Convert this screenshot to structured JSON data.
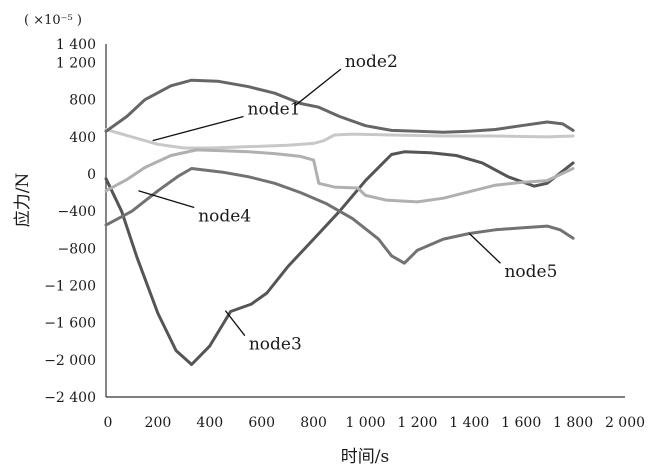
{
  "chart_data": {
    "type": "line",
    "ylabel": "应力/N",
    "xlabel": "时间/s",
    "y_unit": "( ×10⁻⁵ )",
    "xlim": [
      0,
      2000
    ],
    "ylim": [
      -2400,
      1400
    ],
    "x_ticks": [
      0,
      200,
      400,
      600,
      800,
      1000,
      1200,
      1400,
      1600,
      1800,
      2000
    ],
    "x_tick_labels": [
      "0",
      "200",
      "400",
      "600",
      "800",
      "1 000",
      "1 200",
      "1 400",
      "1 600",
      "1 800",
      "2 000"
    ],
    "y_ticks": [
      1400,
      1200,
      800,
      400,
      0,
      -400,
      -800,
      -1200,
      -1600,
      -2000,
      -2400
    ],
    "y_tick_labels": [
      "1 400",
      "1 200",
      "800",
      "400",
      "0",
      "−400",
      "−800",
      "−1 200",
      "−1 600",
      "−2 000",
      "−2 400"
    ],
    "grid": false,
    "series": [
      {
        "name": "node1",
        "color": "#c8c8c8",
        "label_at": [
          530,
          620
        ],
        "leader_to": [
          180,
          360
        ],
        "points": [
          [
            0,
            480
          ],
          [
            100,
            400
          ],
          [
            200,
            320
          ],
          [
            300,
            280
          ],
          [
            400,
            280
          ],
          [
            500,
            290
          ],
          [
            600,
            300
          ],
          [
            700,
            310
          ],
          [
            800,
            330
          ],
          [
            840,
            360
          ],
          [
            880,
            420
          ],
          [
            950,
            430
          ],
          [
            1100,
            420
          ],
          [
            1300,
            410
          ],
          [
            1500,
            410
          ],
          [
            1700,
            400
          ],
          [
            1800,
            410
          ]
        ]
      },
      {
        "name": "node2",
        "color": "#666666",
        "label_at": [
          905,
          1130
        ],
        "leader_to": [
          730,
          740
        ],
        "points": [
          [
            0,
            460
          ],
          [
            80,
            620
          ],
          [
            150,
            800
          ],
          [
            250,
            950
          ],
          [
            330,
            1010
          ],
          [
            430,
            1000
          ],
          [
            550,
            940
          ],
          [
            650,
            870
          ],
          [
            750,
            760
          ],
          [
            820,
            720
          ],
          [
            900,
            620
          ],
          [
            1000,
            520
          ],
          [
            1100,
            470
          ],
          [
            1200,
            460
          ],
          [
            1300,
            450
          ],
          [
            1400,
            460
          ],
          [
            1500,
            480
          ],
          [
            1600,
            520
          ],
          [
            1700,
            560
          ],
          [
            1760,
            540
          ],
          [
            1800,
            470
          ]
        ]
      },
      {
        "name": "node3",
        "color": "#555555",
        "label_at": [
          535,
          -1740
        ],
        "leader_to": [
          460,
          -1470
        ],
        "points": [
          [
            0,
            -50
          ],
          [
            60,
            -400
          ],
          [
            120,
            -900
          ],
          [
            200,
            -1500
          ],
          [
            270,
            -1900
          ],
          [
            330,
            -2050
          ],
          [
            400,
            -1850
          ],
          [
            480,
            -1480
          ],
          [
            560,
            -1400
          ],
          [
            620,
            -1280
          ],
          [
            700,
            -1000
          ],
          [
            800,
            -700
          ],
          [
            900,
            -400
          ],
          [
            1000,
            -70
          ],
          [
            1100,
            210
          ],
          [
            1150,
            240
          ],
          [
            1250,
            230
          ],
          [
            1350,
            200
          ],
          [
            1450,
            120
          ],
          [
            1550,
            -30
          ],
          [
            1650,
            -130
          ],
          [
            1700,
            -100
          ],
          [
            1800,
            120
          ]
        ]
      },
      {
        "name": "node4",
        "color": "#b0b0b0",
        "label_at": [
          340,
          -360
        ],
        "leader_to": [
          125,
          -180
        ],
        "points": [
          [
            0,
            -180
          ],
          [
            80,
            -60
          ],
          [
            150,
            70
          ],
          [
            250,
            200
          ],
          [
            350,
            260
          ],
          [
            450,
            250
          ],
          [
            550,
            240
          ],
          [
            650,
            220
          ],
          [
            750,
            190
          ],
          [
            800,
            150
          ],
          [
            820,
            -100
          ],
          [
            880,
            -140
          ],
          [
            970,
            -150
          ],
          [
            1000,
            -230
          ],
          [
            1080,
            -280
          ],
          [
            1200,
            -300
          ],
          [
            1300,
            -260
          ],
          [
            1400,
            -190
          ],
          [
            1500,
            -120
          ],
          [
            1600,
            -90
          ],
          [
            1700,
            -70
          ],
          [
            1800,
            60
          ]
        ]
      },
      {
        "name": "node5",
        "color": "#727272",
        "label_at": [
          1520,
          -960
        ],
        "leader_to": [
          1400,
          -640
        ],
        "points": [
          [
            0,
            -550
          ],
          [
            100,
            -400
          ],
          [
            200,
            -180
          ],
          [
            280,
            -20
          ],
          [
            330,
            60
          ],
          [
            450,
            20
          ],
          [
            550,
            -30
          ],
          [
            650,
            -100
          ],
          [
            750,
            -200
          ],
          [
            850,
            -320
          ],
          [
            950,
            -480
          ],
          [
            1050,
            -700
          ],
          [
            1100,
            -880
          ],
          [
            1150,
            -960
          ],
          [
            1200,
            -820
          ],
          [
            1300,
            -700
          ],
          [
            1400,
            -640
          ],
          [
            1500,
            -600
          ],
          [
            1600,
            -580
          ],
          [
            1700,
            -560
          ],
          [
            1750,
            -600
          ],
          [
            1800,
            -690
          ]
        ]
      }
    ]
  }
}
